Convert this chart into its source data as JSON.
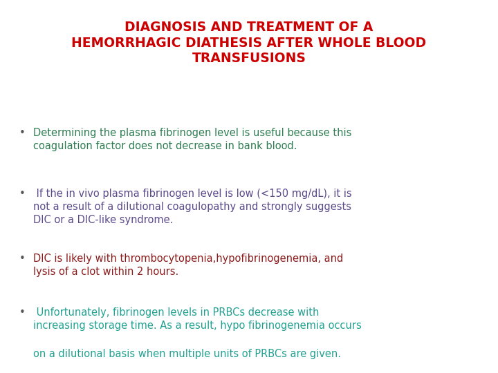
{
  "title_lines": [
    "DIAGNOSIS AND TREATMENT OF A",
    "HEMORRHAGIC DIATHESIS AFTER WHOLE BLOOD",
    "TRANSFUSIONS"
  ],
  "title_color": "#cc0000",
  "title_fontsize": 13.5,
  "bg_color": "#ffffff",
  "bullet_color": "#555555",
  "bullet_items": [
    {
      "text": "Determining the plasma fibrinogen level is useful because this\ncoagulation factor does not decrease in bank blood.",
      "color": "#2e7d52",
      "fontsize": 10.5
    },
    {
      "text": " If the in vivo plasma fibrinogen level is low (<150 mg/dL), it is\nnot a result of a dilutional coagulopathy and strongly suggests\nDIC or a DIC-like syndrome.",
      "color": "#5b4a8a",
      "fontsize": 10.5
    },
    {
      "text": "DIC is likely with thrombocytopenia,hypofibrinogenemia, and\nlysis of a clot within 2 hours.",
      "color": "#8b1a1a",
      "fontsize": 10.5
    },
    {
      "text": " Unfortunately, fibrinogen levels in PRBCs decrease with\nincreasing storage time. As a result, hypo fibrinogenemia occurs",
      "color": "#20a090",
      "fontsize": 10.5
    }
  ],
  "last_line": "on a dilutional basis when multiple units of PRBCs are given.",
  "last_line_color": "#20a090",
  "last_line_fontsize": 10.5,
  "bullet_char": "•"
}
